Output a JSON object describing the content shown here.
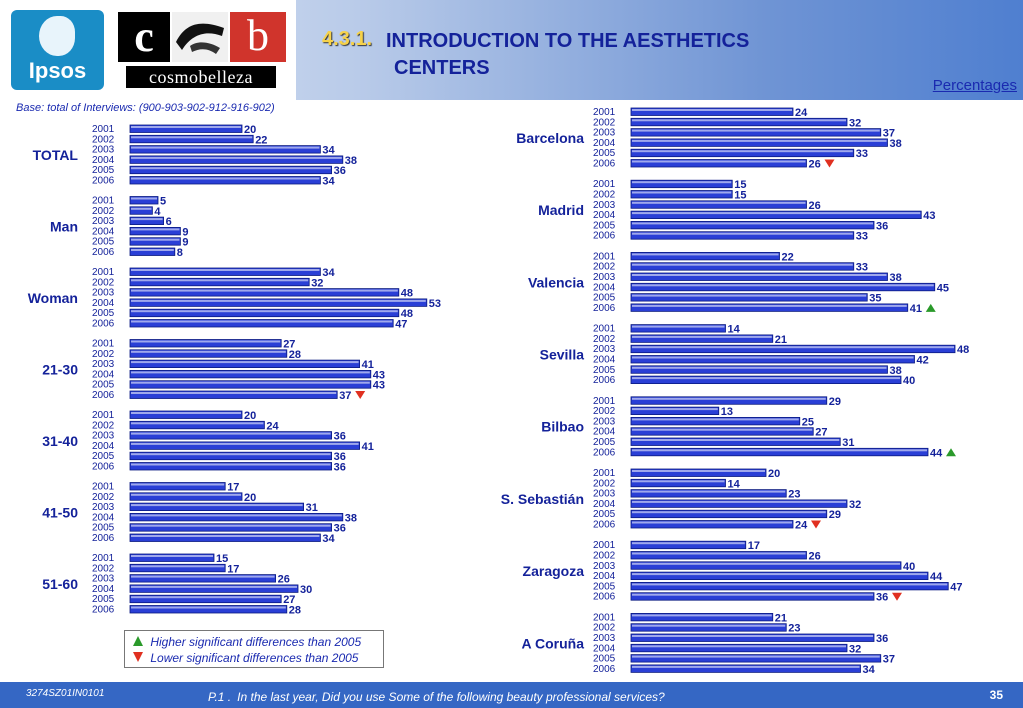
{
  "header": {
    "title_number": "4.3.1.",
    "title_line1": "INTRODUCTION TO THE AESTHETICS",
    "title_line2": "CENTERS",
    "units_link": "Percentages",
    "ipsos_logo_text": "Ipsos",
    "cosmo_c": "c",
    "cosmo_b": "b",
    "cosmo_word": "cosmobelleza"
  },
  "base": {
    "label": "Base: total of Interviews:",
    "value": "(900-903-902-912-916-902)"
  },
  "legend": {
    "higher": "Higher significant differences than 2005",
    "lower": "Lower significant differences than 2005",
    "higher_color": "#2a9a2a",
    "lower_color": "#e03020"
  },
  "footer": {
    "code": "3274SZ01IN0101",
    "question_number": "P.1 .",
    "question": "In the last year, Did you use Some of the following beauty professional services?",
    "page": "35"
  },
  "chart_data": [
    {
      "type": "bar",
      "orientation": "horizontal",
      "panel": "left",
      "categories": [
        "2001",
        "2002",
        "2003",
        "2004",
        "2005",
        "2006"
      ],
      "series": [
        {
          "name": "TOTAL",
          "values": [
            20,
            22,
            34,
            38,
            36,
            34
          ],
          "markers": [
            null,
            null,
            null,
            null,
            null,
            null
          ]
        },
        {
          "name": "Man",
          "values": [
            5,
            4,
            6,
            9,
            9,
            8
          ],
          "markers": [
            null,
            null,
            null,
            null,
            null,
            null
          ]
        },
        {
          "name": "Woman",
          "values": [
            34,
            32,
            48,
            53,
            48,
            47
          ],
          "markers": [
            null,
            null,
            null,
            null,
            null,
            null
          ]
        },
        {
          "name": "21-30",
          "values": [
            27,
            28,
            41,
            43,
            43,
            37
          ],
          "markers": [
            null,
            null,
            null,
            null,
            null,
            "down"
          ]
        },
        {
          "name": "31-40",
          "values": [
            20,
            24,
            36,
            41,
            36,
            36
          ],
          "markers": [
            null,
            null,
            null,
            null,
            null,
            null
          ]
        },
        {
          "name": "41-50",
          "values": [
            17,
            20,
            31,
            38,
            36,
            34
          ],
          "markers": [
            null,
            null,
            null,
            null,
            null,
            null
          ]
        },
        {
          "name": "51-60",
          "values": [
            15,
            17,
            26,
            30,
            27,
            28
          ],
          "markers": [
            null,
            null,
            null,
            null,
            null,
            null
          ]
        }
      ],
      "bar_color": "#2a3fd6",
      "grid": false
    },
    {
      "type": "bar",
      "orientation": "horizontal",
      "panel": "right",
      "categories": [
        "2001",
        "2002",
        "2003",
        "2004",
        "2005",
        "2006"
      ],
      "series": [
        {
          "name": "Barcelona",
          "values": [
            24,
            32,
            37,
            38,
            33,
            26
          ],
          "markers": [
            null,
            null,
            null,
            null,
            null,
            "down"
          ]
        },
        {
          "name": "Madrid",
          "values": [
            15,
            15,
            26,
            43,
            36,
            33
          ],
          "markers": [
            null,
            null,
            null,
            null,
            null,
            null
          ]
        },
        {
          "name": "Valencia",
          "values": [
            22,
            33,
            38,
            45,
            35,
            41
          ],
          "markers": [
            null,
            null,
            null,
            null,
            null,
            "up"
          ]
        },
        {
          "name": "Sevilla",
          "values": [
            14,
            21,
            48,
            42,
            38,
            40
          ],
          "markers": [
            null,
            null,
            null,
            null,
            null,
            null
          ]
        },
        {
          "name": "Bilbao",
          "values": [
            29,
            13,
            25,
            27,
            31,
            44
          ],
          "markers": [
            null,
            null,
            null,
            null,
            null,
            "up"
          ]
        },
        {
          "name": "S. Sebastián",
          "values": [
            20,
            14,
            23,
            32,
            29,
            24
          ],
          "markers": [
            null,
            null,
            null,
            null,
            null,
            "down"
          ]
        },
        {
          "name": "Zaragoza",
          "values": [
            17,
            26,
            40,
            44,
            47,
            36
          ],
          "markers": [
            null,
            null,
            null,
            null,
            null,
            "down"
          ]
        },
        {
          "name": "A Coruña",
          "values": [
            21,
            23,
            36,
            32,
            37,
            34
          ],
          "markers": [
            null,
            null,
            null,
            null,
            null,
            null
          ]
        }
      ],
      "bar_color": "#2a3fd6",
      "grid": false
    }
  ]
}
